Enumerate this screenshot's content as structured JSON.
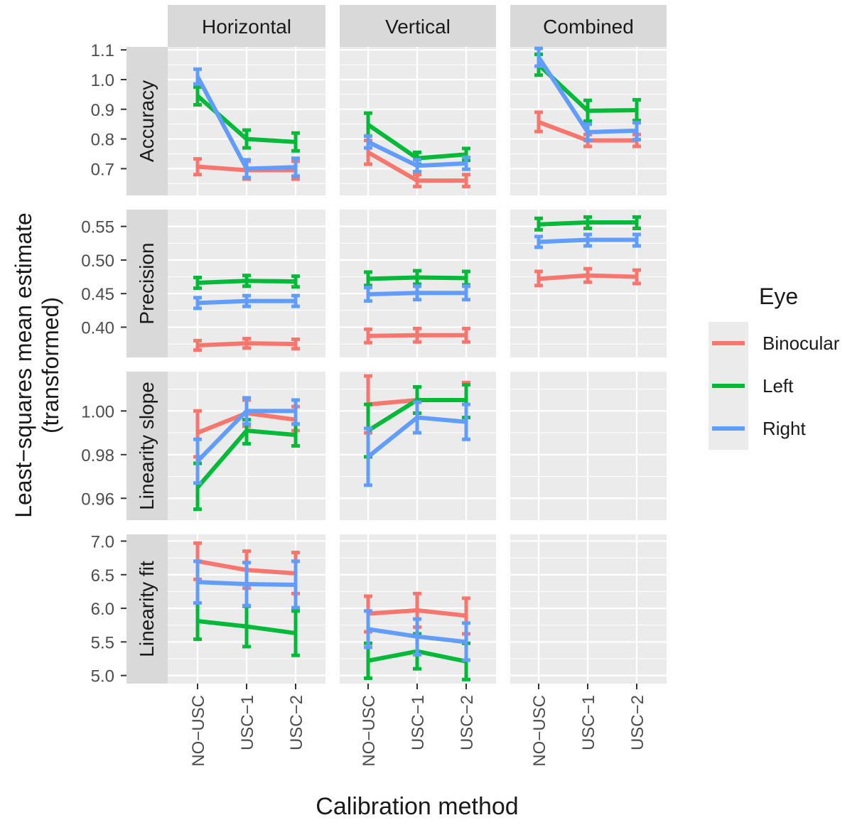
{
  "chart_data": {
    "type": "line",
    "facet_columns": [
      "Horizontal",
      "Vertical",
      "Combined"
    ],
    "facet_rows": [
      "Accuracy",
      "Precision",
      "Linearity slope",
      "Linearity fit"
    ],
    "categories": [
      "NO−USC",
      "USC−1",
      "USC−2"
    ],
    "xlabel": "Calibration method",
    "ylabel_line1": "Least−squares mean estimate",
    "ylabel_line2": "(transformed)",
    "legend": {
      "title": "Eye",
      "position": "right",
      "entries": [
        {
          "name": "Binocular",
          "color": "#F8766D"
        },
        {
          "name": "Left",
          "color": "#00BA38"
        },
        {
          "name": "Right",
          "color": "#619CFF"
        }
      ]
    },
    "colors": {
      "panel": "#EBEBEB",
      "strip": "#D9D9D9",
      "grid": "#FFFFFF",
      "text": "#1A1A1A",
      "tick_text": "#4D4D4D"
    },
    "grid": true,
    "rows": [
      {
        "name": "Accuracy",
        "ylim": [
          0.61,
          1.11
        ],
        "ticks": [
          0.7,
          0.8,
          0.9,
          1.0,
          1.1
        ],
        "tick_labels": [
          "0.7",
          "0.8",
          "0.9",
          "1.0",
          "1.1"
        ],
        "panels": [
          {
            "column": "Horizontal",
            "series": [
              {
                "name": "Binocular",
                "values": [
                  0.707,
                  0.695,
                  0.695
                ],
                "lower": [
                  0.68,
                  0.665,
                  0.665
                ],
                "upper": [
                  0.733,
                  0.725,
                  0.725
                ]
              },
              {
                "name": "Left",
                "values": [
                  0.945,
                  0.8,
                  0.79
                ],
                "lower": [
                  0.915,
                  0.77,
                  0.76
                ],
                "upper": [
                  0.975,
                  0.83,
                  0.82
                ]
              },
              {
                "name": "Right",
                "values": [
                  1.01,
                  0.7,
                  0.705
                ],
                "lower": [
                  0.985,
                  0.67,
                  0.675
                ],
                "upper": [
                  1.035,
                  0.73,
                  0.735
                ]
              }
            ]
          },
          {
            "column": "Vertical",
            "series": [
              {
                "name": "Binocular",
                "values": [
                  0.755,
                  0.66,
                  0.66
                ],
                "lower": [
                  0.715,
                  0.64,
                  0.64
                ],
                "upper": [
                  0.795,
                  0.68,
                  0.68
                ]
              },
              {
                "name": "Left",
                "values": [
                  0.848,
                  0.735,
                  0.748
                ],
                "lower": [
                  0.81,
                  0.715,
                  0.728
                ],
                "upper": [
                  0.887,
                  0.755,
                  0.768
                ]
              },
              {
                "name": "Right",
                "values": [
                  0.79,
                  0.71,
                  0.718
                ],
                "lower": [
                  0.77,
                  0.69,
                  0.698
                ],
                "upper": [
                  0.81,
                  0.73,
                  0.738
                ]
              }
            ]
          },
          {
            "column": "Combined",
            "series": [
              {
                "name": "Binocular",
                "values": [
                  0.857,
                  0.795,
                  0.795
                ],
                "lower": [
                  0.825,
                  0.775,
                  0.775
                ],
                "upper": [
                  0.89,
                  0.815,
                  0.815
                ]
              },
              {
                "name": "Left",
                "values": [
                  1.05,
                  0.895,
                  0.897
                ],
                "lower": [
                  1.015,
                  0.86,
                  0.862
                ],
                "upper": [
                  1.085,
                  0.93,
                  0.932
                ]
              },
              {
                "name": "Right",
                "values": [
                  1.075,
                  0.823,
                  0.828
                ],
                "lower": [
                  1.045,
                  0.795,
                  0.798
                ],
                "upper": [
                  1.105,
                  0.85,
                  0.855
                ]
              }
            ]
          }
        ]
      },
      {
        "name": "Precision",
        "ylim": [
          0.355,
          0.575
        ],
        "ticks": [
          0.4,
          0.45,
          0.5,
          0.55
        ],
        "tick_labels": [
          "0.40",
          "0.45",
          "0.50",
          "0.55"
        ],
        "panels": [
          {
            "column": "Horizontal",
            "series": [
              {
                "name": "Binocular",
                "values": [
                  0.373,
                  0.376,
                  0.375
                ],
                "lower": [
                  0.366,
                  0.369,
                  0.368
                ],
                "upper": [
                  0.38,
                  0.383,
                  0.382
                ]
              },
              {
                "name": "Left",
                "values": [
                  0.466,
                  0.469,
                  0.468
                ],
                "lower": [
                  0.458,
                  0.461,
                  0.46
                ],
                "upper": [
                  0.474,
                  0.477,
                  0.476
                ]
              },
              {
                "name": "Right",
                "values": [
                  0.436,
                  0.439,
                  0.439
                ],
                "lower": [
                  0.428,
                  0.431,
                  0.431
                ],
                "upper": [
                  0.444,
                  0.447,
                  0.447
                ]
              }
            ]
          },
          {
            "column": "Vertical",
            "series": [
              {
                "name": "Binocular",
                "values": [
                  0.387,
                  0.388,
                  0.388
                ],
                "lower": [
                  0.377,
                  0.378,
                  0.378
                ],
                "upper": [
                  0.397,
                  0.398,
                  0.398
                ]
              },
              {
                "name": "Left",
                "values": [
                  0.472,
                  0.474,
                  0.473
                ],
                "lower": [
                  0.462,
                  0.464,
                  0.463
                ],
                "upper": [
                  0.482,
                  0.484,
                  0.483
                ]
              },
              {
                "name": "Right",
                "values": [
                  0.449,
                  0.451,
                  0.451
                ],
                "lower": [
                  0.439,
                  0.441,
                  0.441
                ],
                "upper": [
                  0.459,
                  0.461,
                  0.461
                ]
              }
            ]
          },
          {
            "column": "Combined",
            "series": [
              {
                "name": "Binocular",
                "values": [
                  0.472,
                  0.477,
                  0.475
                ],
                "lower": [
                  0.462,
                  0.467,
                  0.465
                ],
                "upper": [
                  0.483,
                  0.487,
                  0.485
                ]
              },
              {
                "name": "Left",
                "values": [
                  0.553,
                  0.556,
                  0.556
                ],
                "lower": [
                  0.545,
                  0.547,
                  0.547
                ],
                "upper": [
                  0.562,
                  0.564,
                  0.564
                ]
              },
              {
                "name": "Right",
                "values": [
                  0.527,
                  0.53,
                  0.53
                ],
                "lower": [
                  0.519,
                  0.521,
                  0.521
                ],
                "upper": [
                  0.535,
                  0.538,
                  0.538
                ]
              }
            ]
          }
        ]
      },
      {
        "name": "Linearity slope",
        "ylim": [
          0.95,
          1.018
        ],
        "ticks": [
          0.96,
          0.98,
          1.0
        ],
        "tick_labels": [
          "0.96",
          "0.98",
          "1.00"
        ],
        "panels": [
          {
            "column": "Horizontal",
            "series": [
              {
                "name": "Binocular",
                "values": [
                  0.99,
                  0.999,
                  0.996
                ],
                "lower": [
                  0.979,
                  0.993,
                  0.991
                ],
                "upper": [
                  1.0,
                  1.005,
                  1.002
                ]
              },
              {
                "name": "Left",
                "values": [
                  0.965,
                  0.991,
                  0.989
                ],
                "lower": [
                  0.955,
                  0.985,
                  0.984
                ],
                "upper": [
                  0.976,
                  0.996,
                  0.994
                ]
              },
              {
                "name": "Right",
                "values": [
                  0.977,
                  1.0,
                  1.0
                ],
                "lower": [
                  0.967,
                  0.994,
                  0.994
                ],
                "upper": [
                  0.987,
                  1.006,
                  1.005
                ]
              }
            ]
          },
          {
            "column": "Vertical",
            "series": [
              {
                "name": "Binocular",
                "values": [
                  1.003,
                  1.005,
                  1.005
                ],
                "lower": [
                  0.99,
                  0.999,
                  0.997
                ],
                "upper": [
                  1.016,
                  1.011,
                  1.013
                ]
              },
              {
                "name": "Left",
                "values": [
                  0.991,
                  1.005,
                  1.005
                ],
                "lower": [
                  0.979,
                  0.999,
                  0.997
                ],
                "upper": [
                  1.003,
                  1.011,
                  1.012
                ]
              },
              {
                "name": "Right",
                "values": [
                  0.979,
                  0.997,
                  0.995
                ],
                "lower": [
                  0.966,
                  0.99,
                  0.987
                ],
                "upper": [
                  0.992,
                  1.004,
                  1.003
                ]
              }
            ]
          },
          {
            "column": "Combined",
            "series": []
          }
        ]
      },
      {
        "name": "Linearity fit",
        "ylim": [
          4.88,
          7.1
        ],
        "ticks": [
          5.0,
          5.5,
          6.0,
          6.5,
          7.0
        ],
        "tick_labels": [
          "5.0",
          "5.5",
          "6.0",
          "6.5",
          "7.0"
        ],
        "panels": [
          {
            "column": "Horizontal",
            "series": [
              {
                "name": "Binocular",
                "values": [
                  6.7,
                  6.57,
                  6.52
                ],
                "lower": [
                  6.43,
                  6.3,
                  6.22
                ],
                "upper": [
                  6.97,
                  6.85,
                  6.83
                ]
              },
              {
                "name": "Left",
                "values": [
                  5.81,
                  5.73,
                  5.63
                ],
                "lower": [
                  5.54,
                  5.43,
                  5.3
                ],
                "upper": [
                  6.08,
                  6.03,
                  5.96
                ]
              },
              {
                "name": "Right",
                "values": [
                  6.39,
                  6.36,
                  6.35
                ],
                "lower": [
                  6.08,
                  6.04,
                  6.01
                ],
                "upper": [
                  6.7,
                  6.68,
                  6.7
                ]
              }
            ]
          },
          {
            "column": "Vertical",
            "series": [
              {
                "name": "Binocular",
                "values": [
                  5.92,
                  5.97,
                  5.89
                ],
                "lower": [
                  5.65,
                  5.72,
                  5.62
                ],
                "upper": [
                  6.18,
                  6.22,
                  6.15
                ]
              },
              {
                "name": "Left",
                "values": [
                  5.22,
                  5.36,
                  5.21
                ],
                "lower": [
                  4.96,
                  5.1,
                  4.94
                ],
                "upper": [
                  5.48,
                  5.62,
                  5.48
                ]
              },
              {
                "name": "Right",
                "values": [
                  5.69,
                  5.58,
                  5.5
                ],
                "lower": [
                  5.42,
                  5.31,
                  5.23
                ],
                "upper": [
                  5.96,
                  5.84,
                  5.78
                ]
              }
            ]
          },
          {
            "column": "Combined",
            "series": []
          }
        ]
      }
    ]
  }
}
